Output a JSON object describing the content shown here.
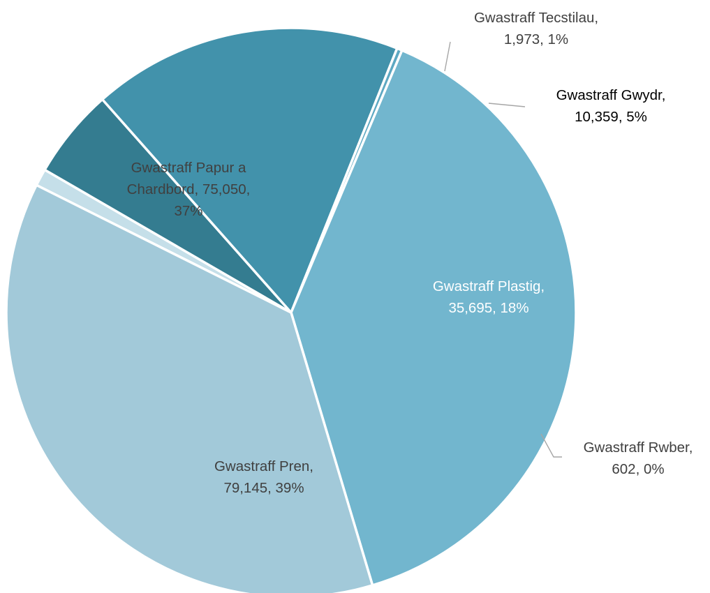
{
  "chart_data": {
    "type": "pie",
    "title": "",
    "slices": [
      {
        "name": "Gwastraff Tecstilau",
        "value": 1973,
        "percent": "1%",
        "color": "#c5dfe9",
        "label_lines": [
          "Gwastraff  Tecstilau,",
          "1,973,  1%"
        ]
      },
      {
        "name": "Gwastraff Gwydr",
        "value": 10359,
        "percent": "5%",
        "color": "#347c90",
        "label_lines": [
          "Gwastraff  Gwydr,",
          "10,359,  5%"
        ]
      },
      {
        "name": "Gwastraff Plastig",
        "value": 35695,
        "percent": "18%",
        "color": "#4292ab",
        "label_lines": [
          "Gwastraff  Plastig,",
          "35,695,  18%"
        ]
      },
      {
        "name": "Gwastraff Rwber",
        "value": 602,
        "percent": "0%",
        "color": "#5da8c2",
        "label_lines": [
          "Gwastraff  Rwber,",
          "602,  0%"
        ]
      },
      {
        "name": "Gwastraff Pren",
        "value": 79145,
        "percent": "39%",
        "color": "#72b6ce",
        "label_lines": [
          "Gwastraff  Pren,",
          "79,145,  39%"
        ]
      },
      {
        "name": "Gwastraff Papur a Chardbord",
        "value": 75050,
        "percent": "37%",
        "color": "#a2c9d9",
        "label_lines": [
          "Gwastraff  Papur  a",
          "Chardbord,  75,050,",
          "37%"
        ]
      }
    ]
  }
}
